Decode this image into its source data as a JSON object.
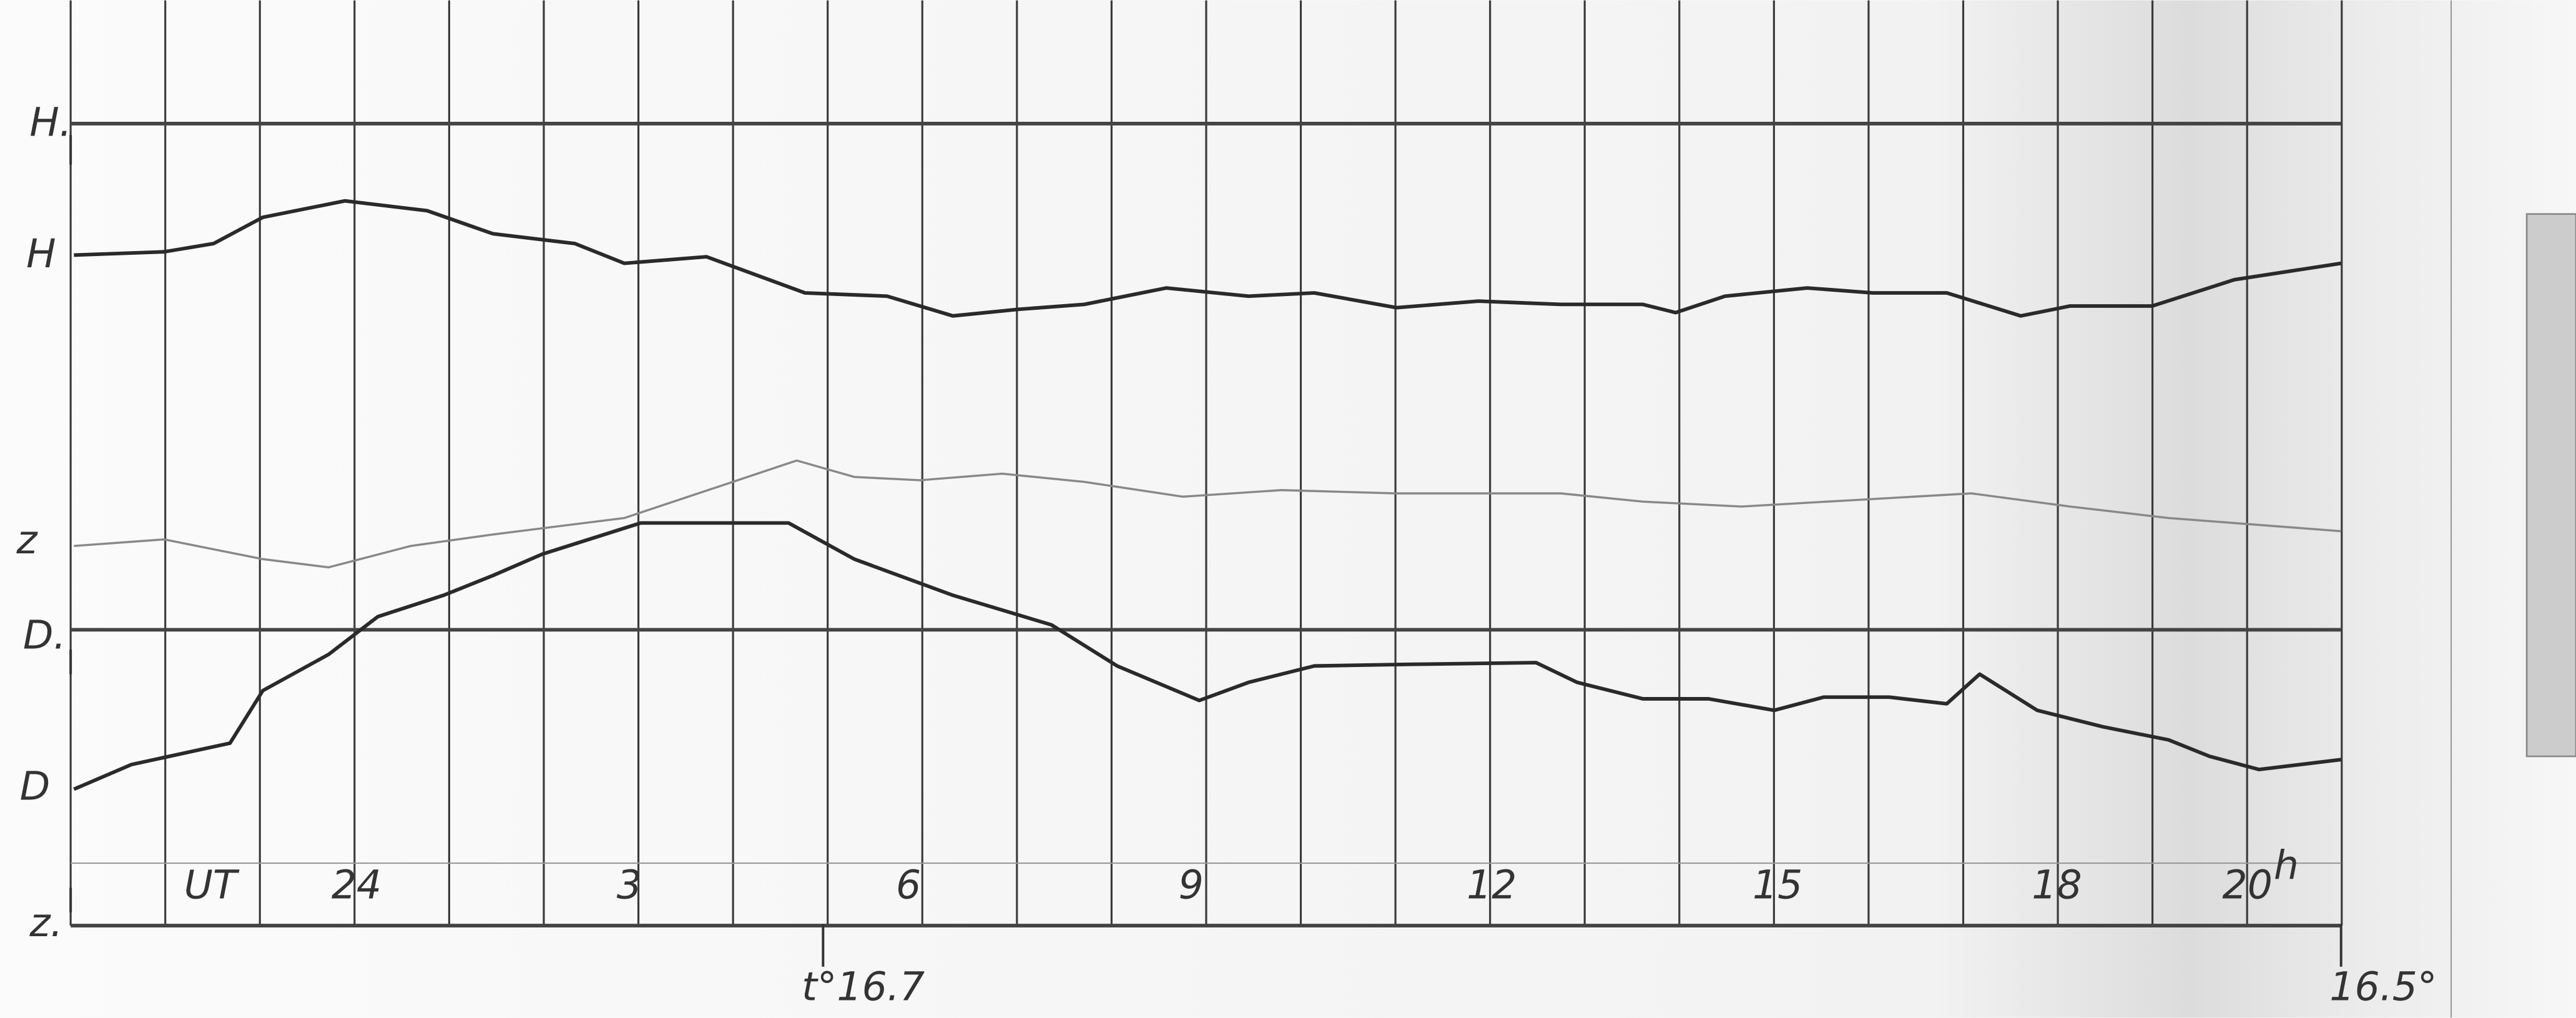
{
  "trace_labels": {
    "h_baseline": "H.",
    "h": "H",
    "z": "z",
    "d_baseline": "D.",
    "d": "D",
    "z_baseline": "z."
  },
  "time_axis": {
    "label": "UT",
    "hours": [
      "24",
      "3",
      "6",
      "9",
      "12",
      "15",
      "18",
      "20"
    ],
    "unit": "h"
  },
  "temperatures": [
    "t°16.7",
    "16.5°"
  ]
}
